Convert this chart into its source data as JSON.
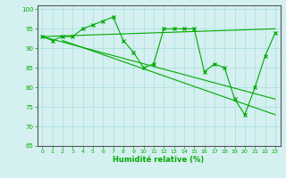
{
  "title": "",
  "xlabel": "Humidité relative (%)",
  "ylabel": "",
  "background_color": "#d4f0f0",
  "grid_color": "#aadddd",
  "line_color": "#00aa00",
  "xlim": [
    -0.5,
    23.5
  ],
  "ylim": [
    65,
    101
  ],
  "yticks": [
    65,
    70,
    75,
    80,
    85,
    90,
    95,
    100
  ],
  "xticks": [
    0,
    1,
    2,
    3,
    4,
    5,
    6,
    7,
    8,
    9,
    10,
    11,
    12,
    13,
    14,
    15,
    16,
    17,
    18,
    19,
    20,
    21,
    22,
    23
  ],
  "main_series": [
    93,
    92,
    93,
    93,
    95,
    96,
    97,
    98,
    92,
    89,
    85,
    86,
    95,
    95,
    95,
    95,
    84,
    86,
    85,
    77,
    73,
    80,
    88,
    94
  ],
  "trend_line1": [
    [
      0,
      93
    ],
    [
      23,
      77
    ]
  ],
  "trend_line2": [
    [
      0,
      93
    ],
    [
      23,
      95
    ]
  ],
  "trend_line3": [
    [
      2,
      92
    ],
    [
      23,
      73
    ]
  ]
}
